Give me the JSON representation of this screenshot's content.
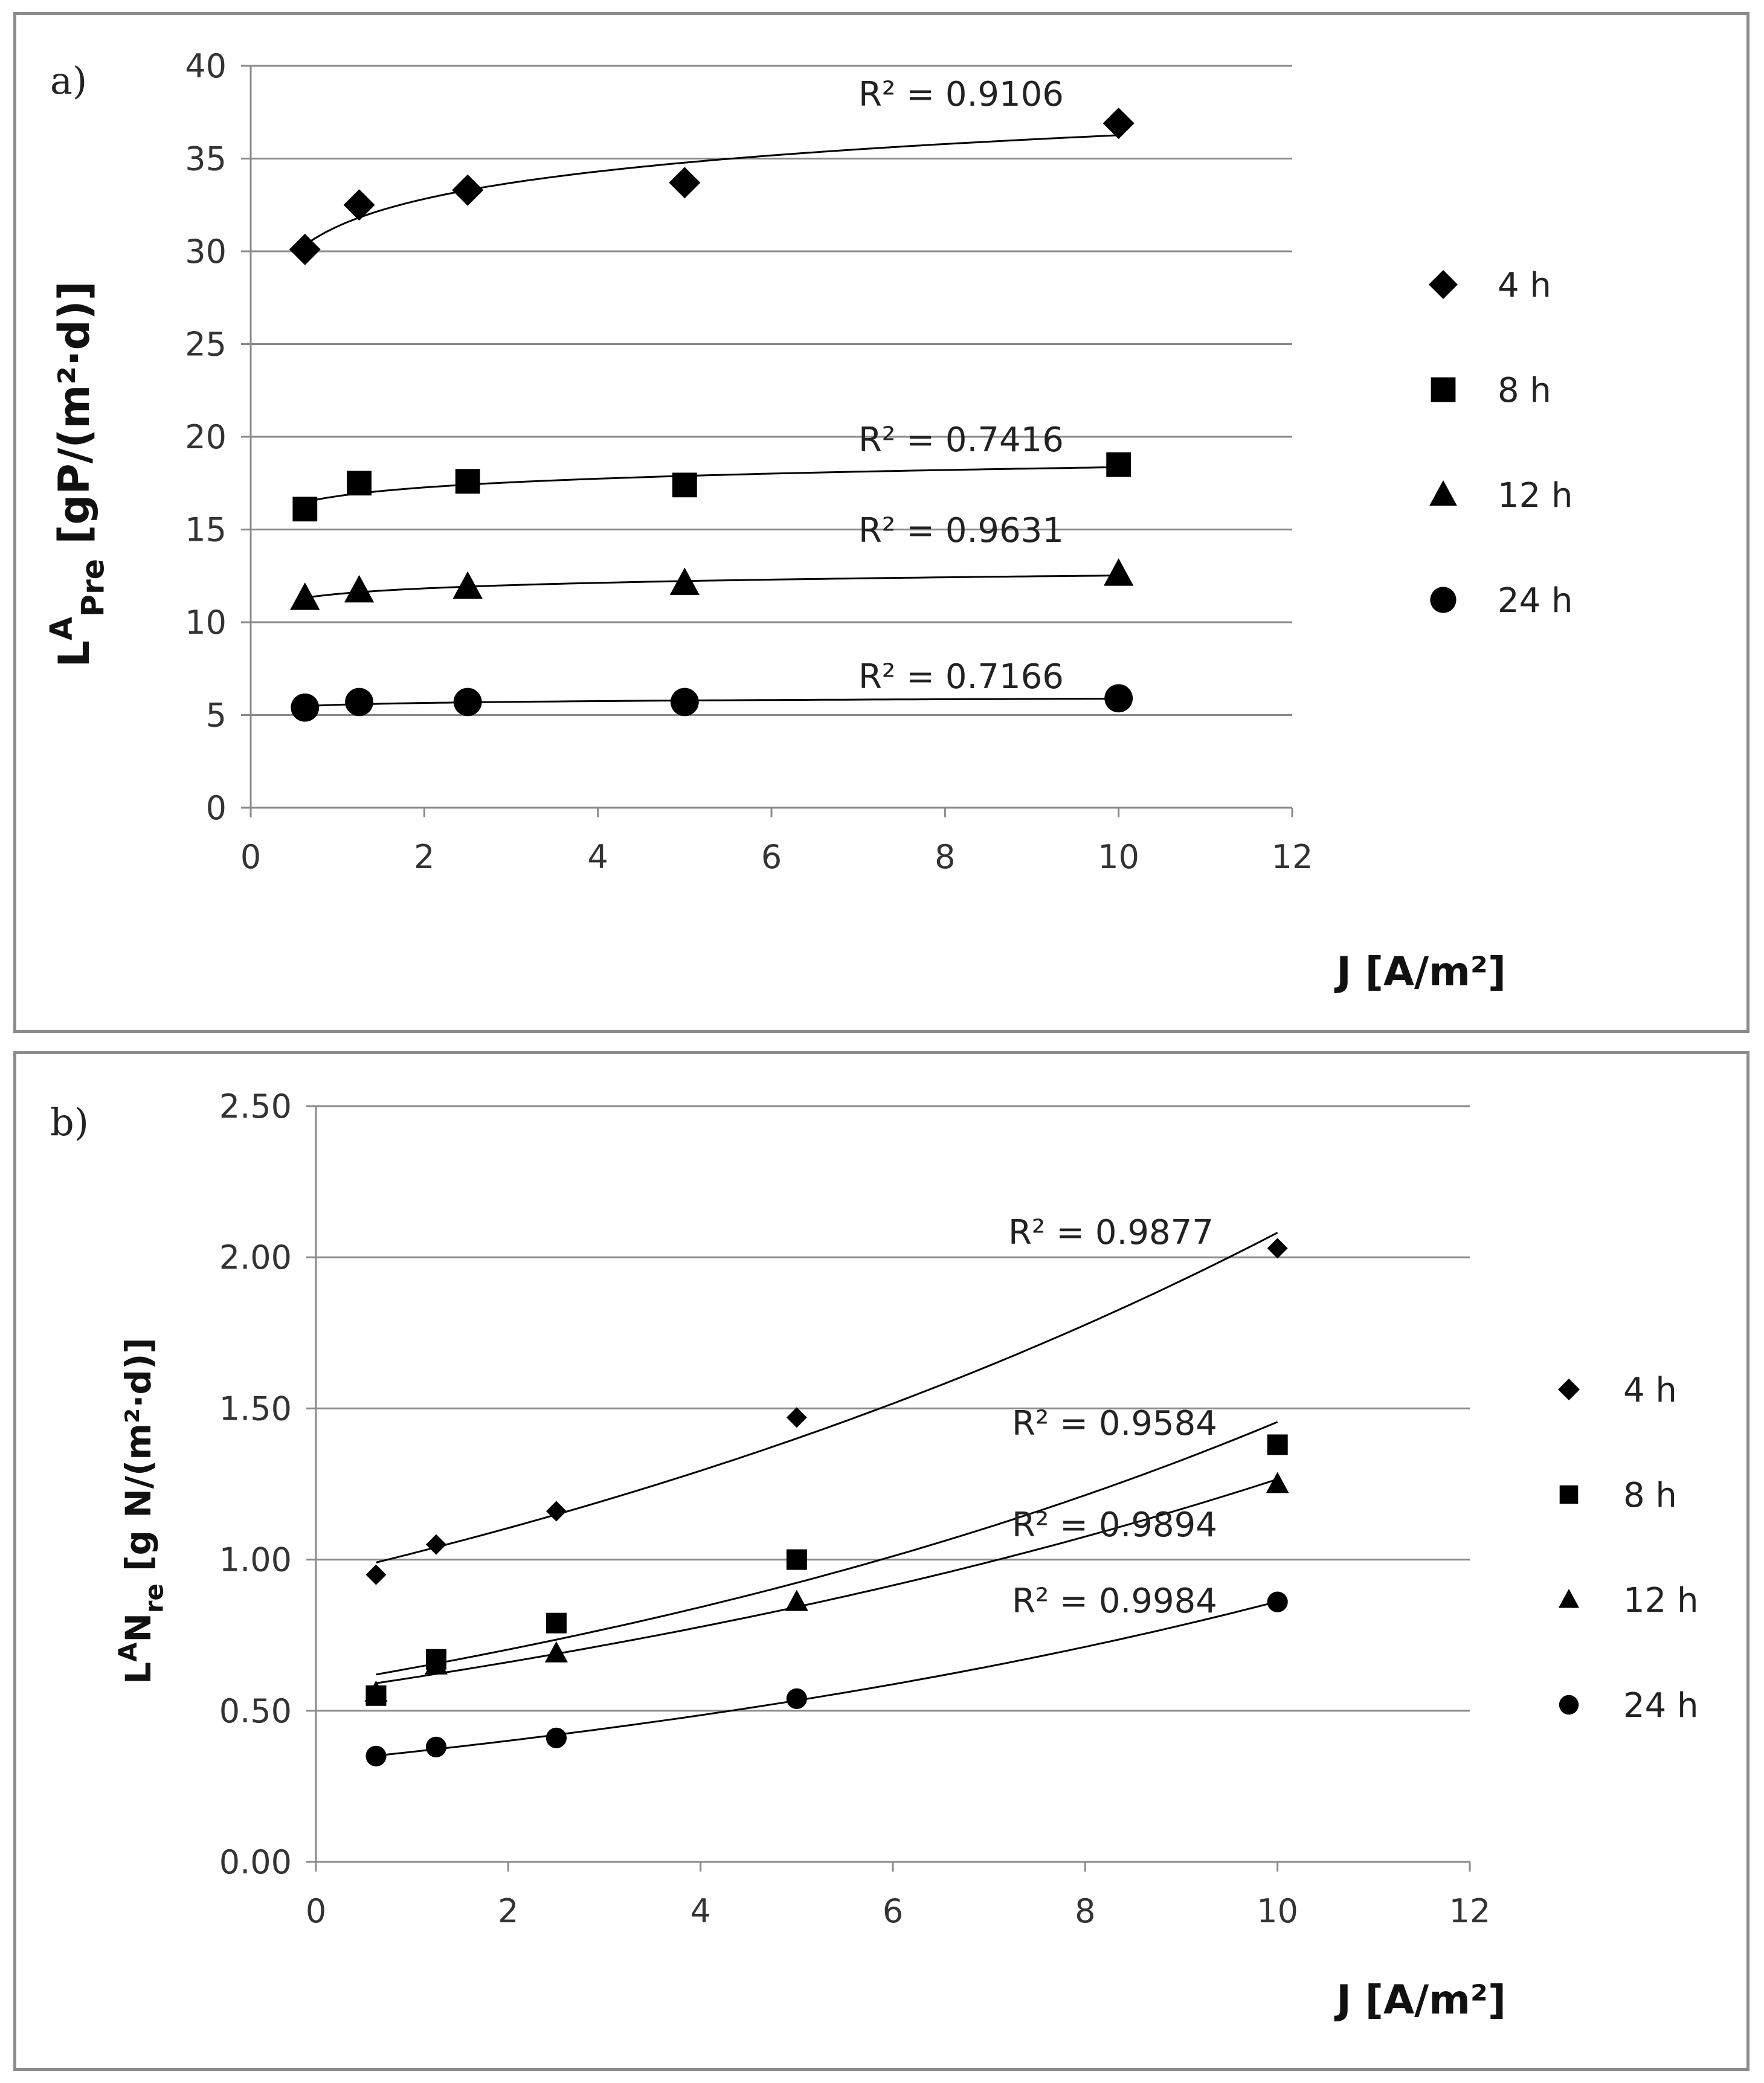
{
  "chart_data": [
    {
      "type": "scatter",
      "panel_label": "a)",
      "title": "",
      "xlabel": "J [A/m²]",
      "ylabel": {
        "main": "L",
        "sup": "A",
        "sub": "Pre",
        "rest": " [gP/(m²·d)]"
      },
      "xlim": [
        0,
        12
      ],
      "ylim": [
        0,
        40
      ],
      "xticks": [
        0,
        2,
        4,
        6,
        8,
        10,
        12
      ],
      "yticks": [
        0,
        5,
        10,
        15,
        20,
        25,
        30,
        35,
        40
      ],
      "ytick_labels": [
        "0",
        "5",
        "10",
        "15",
        "20",
        "25",
        "30",
        "35",
        "40"
      ],
      "grid": "horizontal",
      "legend_position": "right",
      "trendline": "logarithmic",
      "x": [
        0.625,
        1.25,
        2.5,
        5,
        10
      ],
      "series": [
        {
          "name": "4 h",
          "marker": "diamond",
          "values": [
            30.1,
            32.5,
            33.3,
            33.7,
            36.9
          ],
          "r2": "R² = 0.9106"
        },
        {
          "name": "8 h",
          "marker": "square",
          "values": [
            16.1,
            17.5,
            17.6,
            17.4,
            18.5
          ],
          "r2": "R² = 0.7416"
        },
        {
          "name": "12 h",
          "marker": "triangle",
          "values": [
            11.3,
            11.7,
            11.9,
            12.1,
            12.6
          ],
          "r2": "R² = 0.9631"
        },
        {
          "name": "24 h",
          "marker": "circle",
          "values": [
            5.4,
            5.7,
            5.7,
            5.7,
            5.9
          ],
          "r2": "R² = 0.7166"
        }
      ]
    },
    {
      "type": "scatter",
      "panel_label": "b)",
      "title": "",
      "xlabel": "J [A/m²]",
      "ylabel": {
        "main": "L",
        "sup": "A",
        "sub": "",
        "rest": "N",
        "sub2": "re",
        "rest2": " [g N/(m²·d)]"
      },
      "xlim": [
        0,
        12
      ],
      "ylim": [
        0,
        2.5
      ],
      "xticks": [
        0,
        2,
        4,
        6,
        8,
        10,
        12
      ],
      "yticks": [
        0,
        0.5,
        1.0,
        1.5,
        2.0,
        2.5
      ],
      "ytick_labels": [
        "0.00",
        "0.50",
        "1.00",
        "1.50",
        "2.00",
        "2.50"
      ],
      "grid": "horizontal",
      "legend_position": "right",
      "trendline": "exponential",
      "x": [
        0.625,
        1.25,
        2.5,
        5,
        10
      ],
      "series": [
        {
          "name": "4 h",
          "marker": "diamond",
          "values": [
            0.95,
            1.05,
            1.16,
            1.47,
            2.03
          ],
          "r2": "R² = 0.9877"
        },
        {
          "name": "8 h",
          "marker": "square",
          "values": [
            0.55,
            0.67,
            0.79,
            1.0,
            1.38
          ],
          "r2": "R² = 0.9584"
        },
        {
          "name": "12 h",
          "marker": "triangle",
          "values": [
            0.56,
            0.65,
            0.69,
            0.86,
            1.25
          ],
          "r2": "R² = 0.9894"
        },
        {
          "name": "24 h",
          "marker": "circle",
          "values": [
            0.35,
            0.38,
            0.41,
            0.54,
            0.86
          ],
          "r2": "R² = 0.9984"
        }
      ]
    }
  ]
}
